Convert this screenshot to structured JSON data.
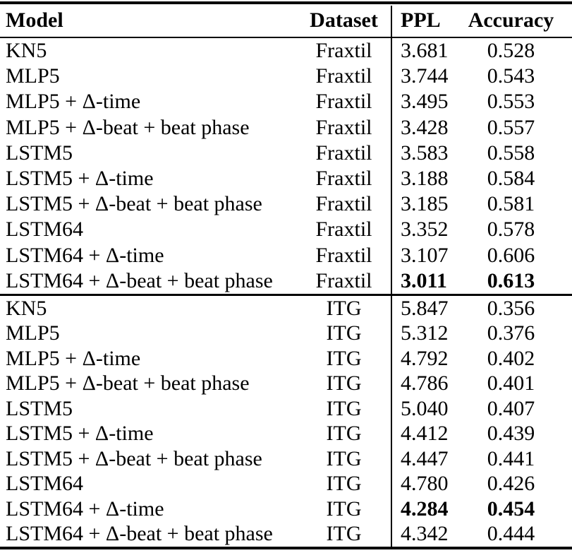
{
  "table": {
    "columns": [
      {
        "key": "model",
        "label": "Model"
      },
      {
        "key": "dataset",
        "label": "Dataset"
      },
      {
        "key": "ppl",
        "label": "PPL"
      },
      {
        "key": "accuracy",
        "label": "Accuracy"
      }
    ],
    "rules_color": "#000000",
    "sections": [
      {
        "name": "fraxtil",
        "rows": [
          {
            "model": "KN5",
            "dataset": "Fraxtil",
            "ppl": "3.681",
            "accuracy": "0.528",
            "bold": false
          },
          {
            "model": "MLP5",
            "dataset": "Fraxtil",
            "ppl": "3.744",
            "accuracy": "0.543",
            "bold": false
          },
          {
            "model": "MLP5 + Δ-time",
            "dataset": "Fraxtil",
            "ppl": "3.495",
            "accuracy": "0.553",
            "bold": false
          },
          {
            "model": "MLP5 + Δ-beat + beat phase",
            "dataset": "Fraxtil",
            "ppl": "3.428",
            "accuracy": "0.557",
            "bold": false
          },
          {
            "model": "LSTM5",
            "dataset": "Fraxtil",
            "ppl": "3.583",
            "accuracy": "0.558",
            "bold": false
          },
          {
            "model": "LSTM5 + Δ-time",
            "dataset": "Fraxtil",
            "ppl": "3.188",
            "accuracy": "0.584",
            "bold": false
          },
          {
            "model": "LSTM5 + Δ-beat + beat phase",
            "dataset": "Fraxtil",
            "ppl": "3.185",
            "accuracy": "0.581",
            "bold": false
          },
          {
            "model": "LSTM64",
            "dataset": "Fraxtil",
            "ppl": "3.352",
            "accuracy": "0.578",
            "bold": false
          },
          {
            "model": "LSTM64 + Δ-time",
            "dataset": "Fraxtil",
            "ppl": "3.107",
            "accuracy": "0.606",
            "bold": false
          },
          {
            "model": "LSTM64 + Δ-beat + beat phase",
            "dataset": "Fraxtil",
            "ppl": "3.011",
            "accuracy": "0.613",
            "bold": true
          }
        ]
      },
      {
        "name": "itg",
        "rows": [
          {
            "model": "KN5",
            "dataset": "ITG",
            "ppl": "5.847",
            "accuracy": "0.356",
            "bold": false
          },
          {
            "model": "MLP5",
            "dataset": "ITG",
            "ppl": "5.312",
            "accuracy": "0.376",
            "bold": false
          },
          {
            "model": "MLP5 + Δ-time",
            "dataset": "ITG",
            "ppl": "4.792",
            "accuracy": "0.402",
            "bold": false
          },
          {
            "model": "MLP5 + Δ-beat + beat phase",
            "dataset": "ITG",
            "ppl": "4.786",
            "accuracy": "0.401",
            "bold": false
          },
          {
            "model": "LSTM5",
            "dataset": "ITG",
            "ppl": "5.040",
            "accuracy": "0.407",
            "bold": false
          },
          {
            "model": "LSTM5 + Δ-time",
            "dataset": "ITG",
            "ppl": "4.412",
            "accuracy": "0.439",
            "bold": false
          },
          {
            "model": "LSTM5 + Δ-beat + beat phase",
            "dataset": "ITG",
            "ppl": "4.447",
            "accuracy": "0.441",
            "bold": false
          },
          {
            "model": "LSTM64",
            "dataset": "ITG",
            "ppl": "4.780",
            "accuracy": "0.426",
            "bold": false
          },
          {
            "model": "LSTM64 + Δ-time",
            "dataset": "ITG",
            "ppl": "4.284",
            "accuracy": "0.454",
            "bold": true
          },
          {
            "model": "LSTM64 + Δ-beat + beat phase",
            "dataset": "ITG",
            "ppl": "4.342",
            "accuracy": "0.444",
            "bold": false
          }
        ]
      }
    ]
  }
}
